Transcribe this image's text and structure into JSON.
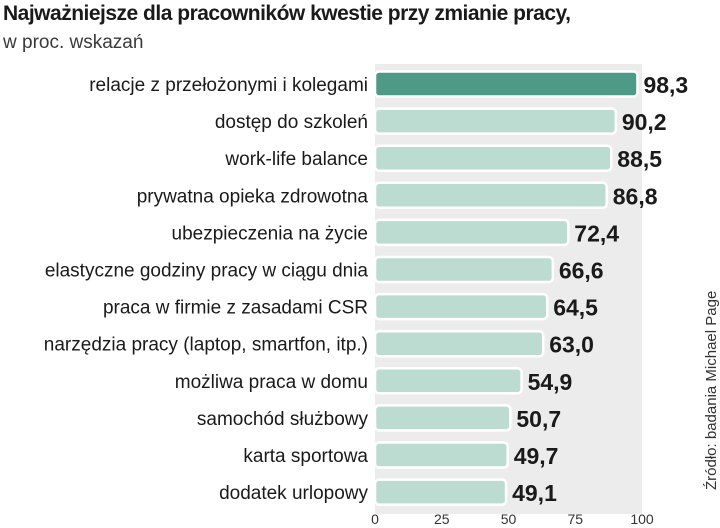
{
  "chart_data": {
    "type": "bar",
    "orientation": "horizontal",
    "title": "Najważniejsze dla pracowników kwestie przy zmianie pracy,",
    "subtitle": "w proc. wskazań",
    "source": "Źródło: badania Michael Page",
    "categories": [
      "relacje z przełożonymi i kolegami",
      "dostęp do szkoleń",
      "work-life balance",
      "prywatna opieka zdrowotna",
      "ubezpieczenia na życie",
      "elastyczne godziny pracy w ciągu dnia",
      "praca w firmie z zasadami CSR",
      "narzędzia pracy (laptop, smartfon, itp.)",
      "możliwa praca w domu",
      "samochód służbowy",
      "karta sportowa",
      "dodatek urlopowy"
    ],
    "values": [
      98.3,
      90.2,
      88.5,
      86.8,
      72.4,
      66.6,
      64.5,
      63.0,
      54.9,
      50.7,
      49.7,
      49.1
    ],
    "value_labels": [
      "98,3",
      "90,2",
      "88,5",
      "86,8",
      "72,4",
      "66,6",
      "64,5",
      "63,0",
      "54,9",
      "50,7",
      "49,7",
      "49,1"
    ],
    "xlim": [
      0,
      100
    ],
    "x_ticks": [
      0,
      25,
      50,
      75,
      100
    ],
    "grid": false,
    "colors": {
      "highlight": "#4f9a87",
      "bar": "#bcdcd2",
      "bar_outline": "#ffffff",
      "background_band": "#ececec"
    }
  }
}
